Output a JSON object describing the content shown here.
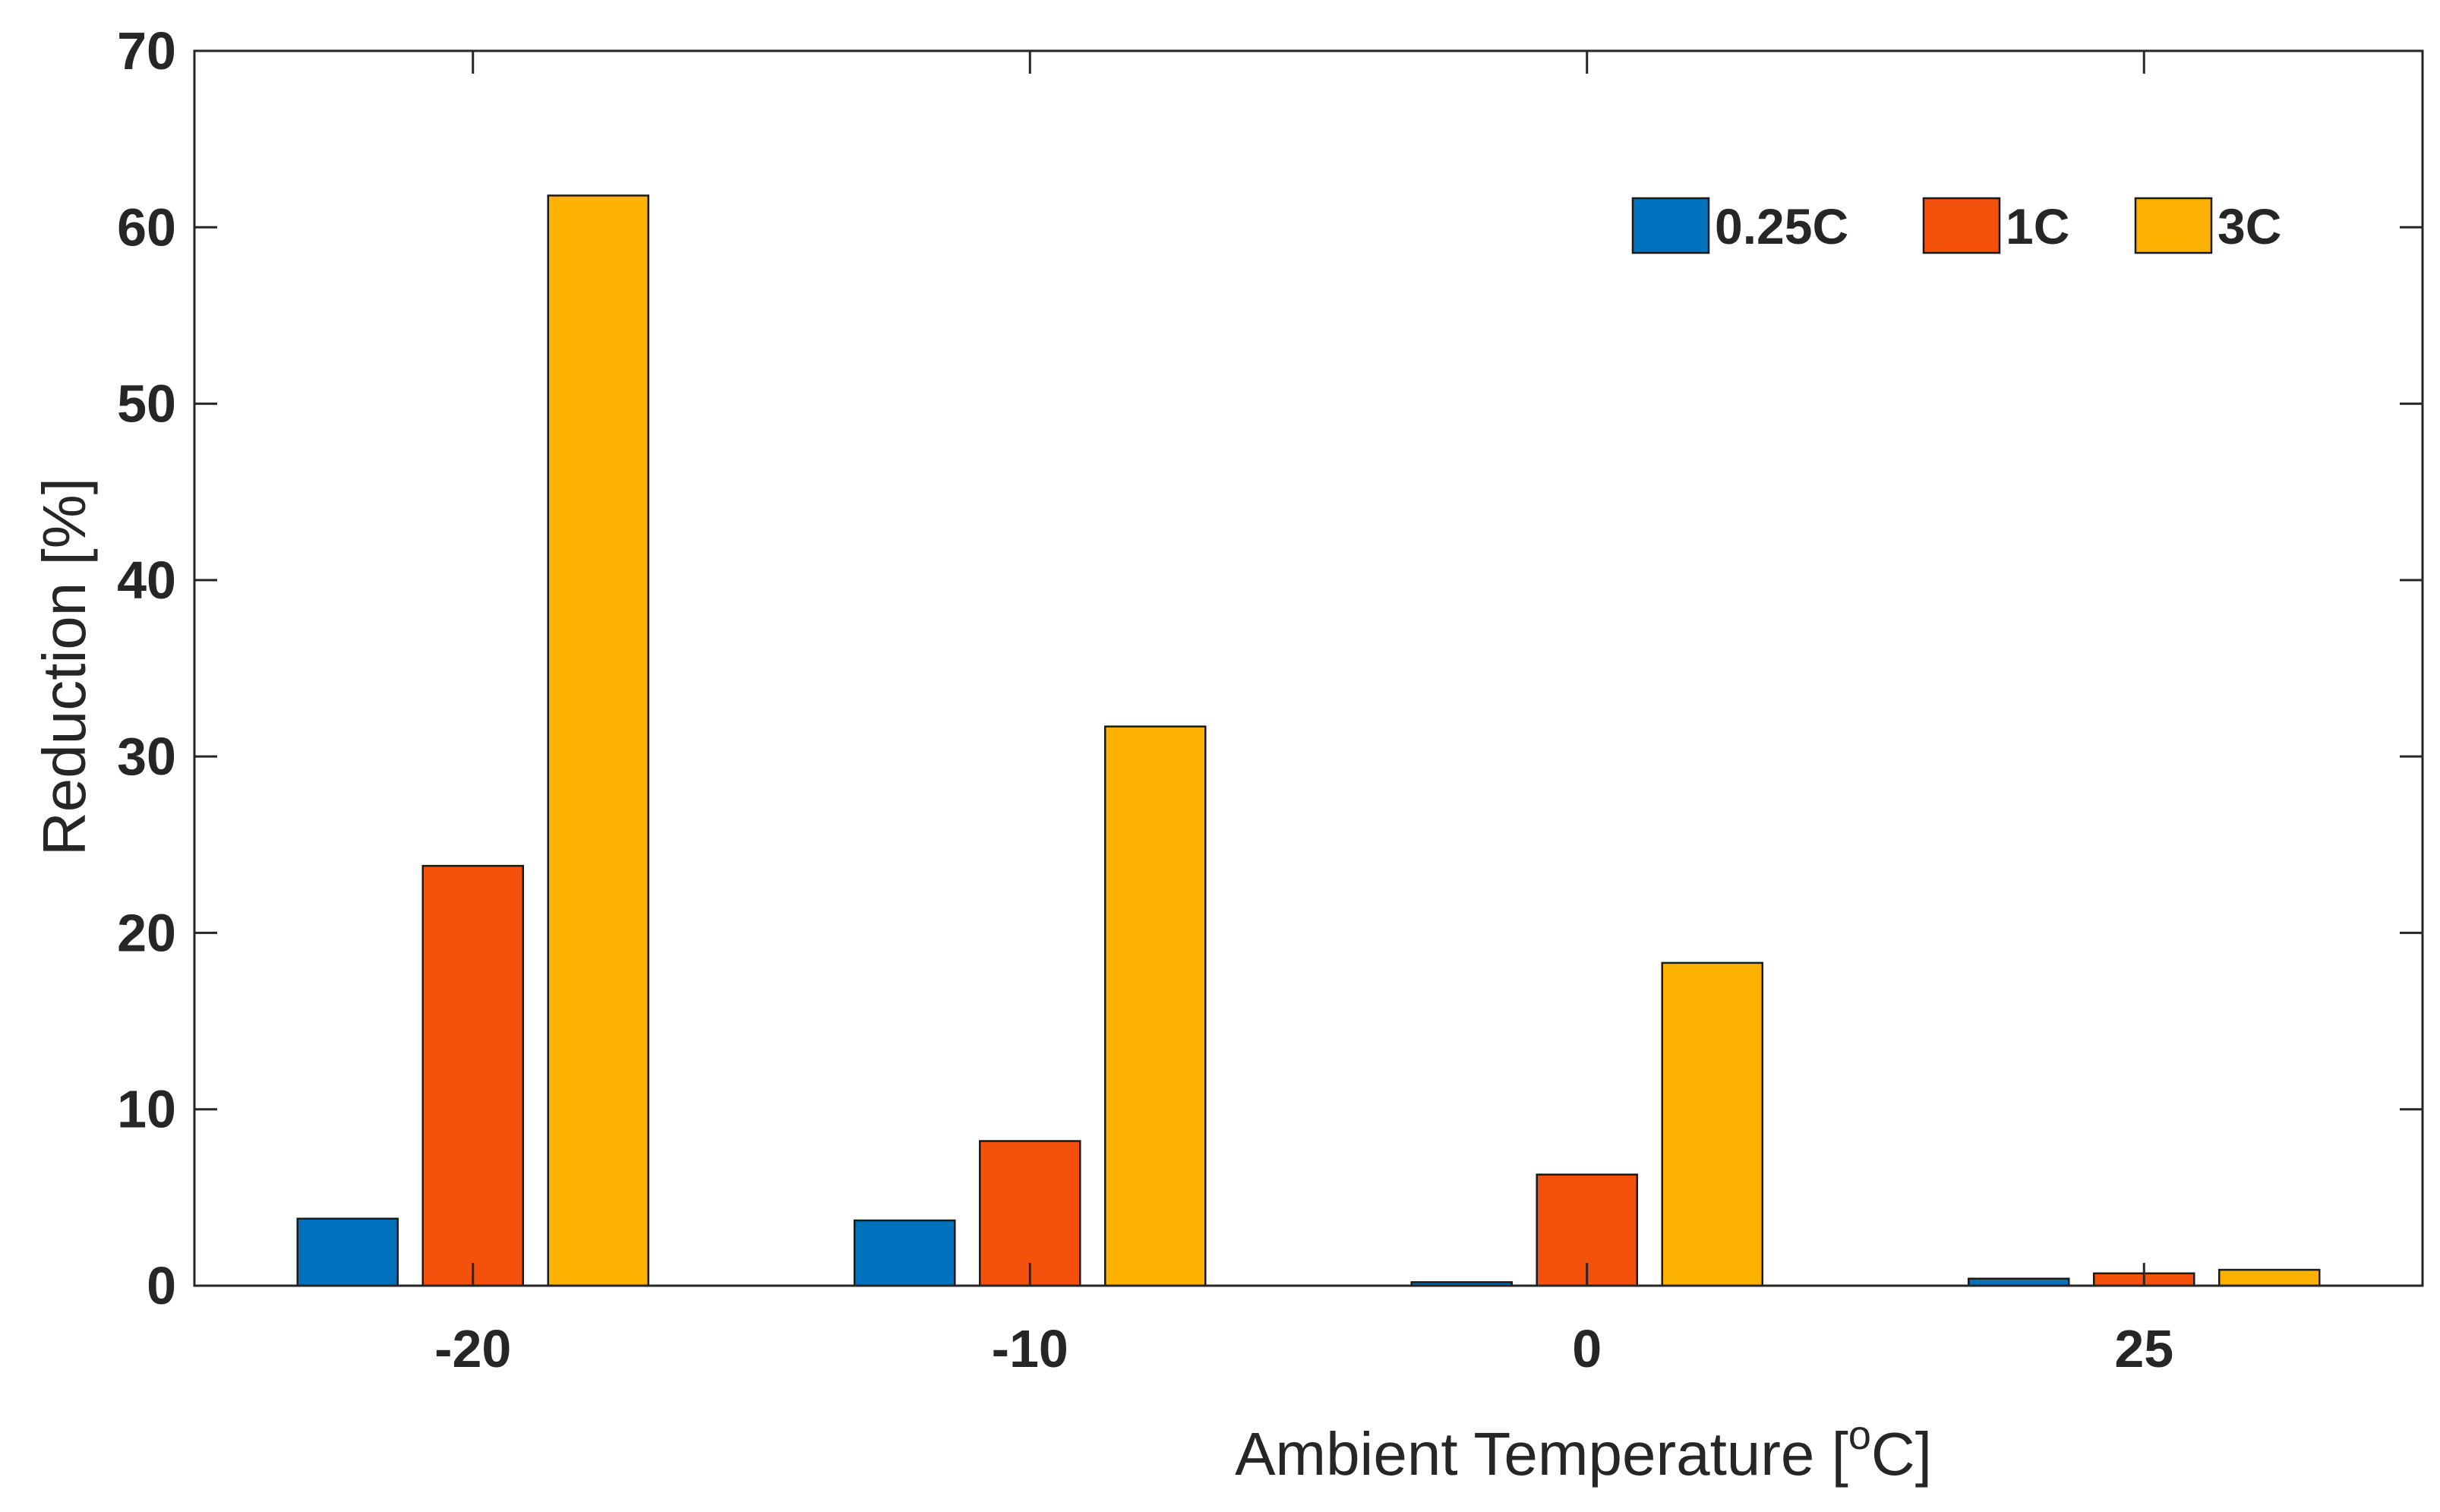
{
  "chart_data": {
    "type": "bar",
    "categories": [
      "-20",
      "-10",
      "0",
      "25"
    ],
    "series": [
      {
        "name": "0.25C",
        "color": "#0072BD",
        "values": [
          3.8,
          3.7,
          0.2,
          0.4
        ]
      },
      {
        "name": "1C",
        "color": "#F4510C",
        "values": [
          23.8,
          8.2,
          6.3,
          0.7
        ]
      },
      {
        "name": "3C",
        "color": "#FDB100",
        "values": [
          61.8,
          31.7,
          18.3,
          0.9
        ]
      }
    ],
    "title": "",
    "xlabel": "Ambient Temperature [",
    "xlabel_superscript": "o",
    "xlabel_suffix": "C]",
    "ylabel": "Reduction [%]",
    "ylim": [
      0,
      70
    ],
    "yticks": [
      0,
      10,
      20,
      30,
      40,
      50,
      60,
      70
    ],
    "grid": false,
    "legend_position": "top-right"
  }
}
